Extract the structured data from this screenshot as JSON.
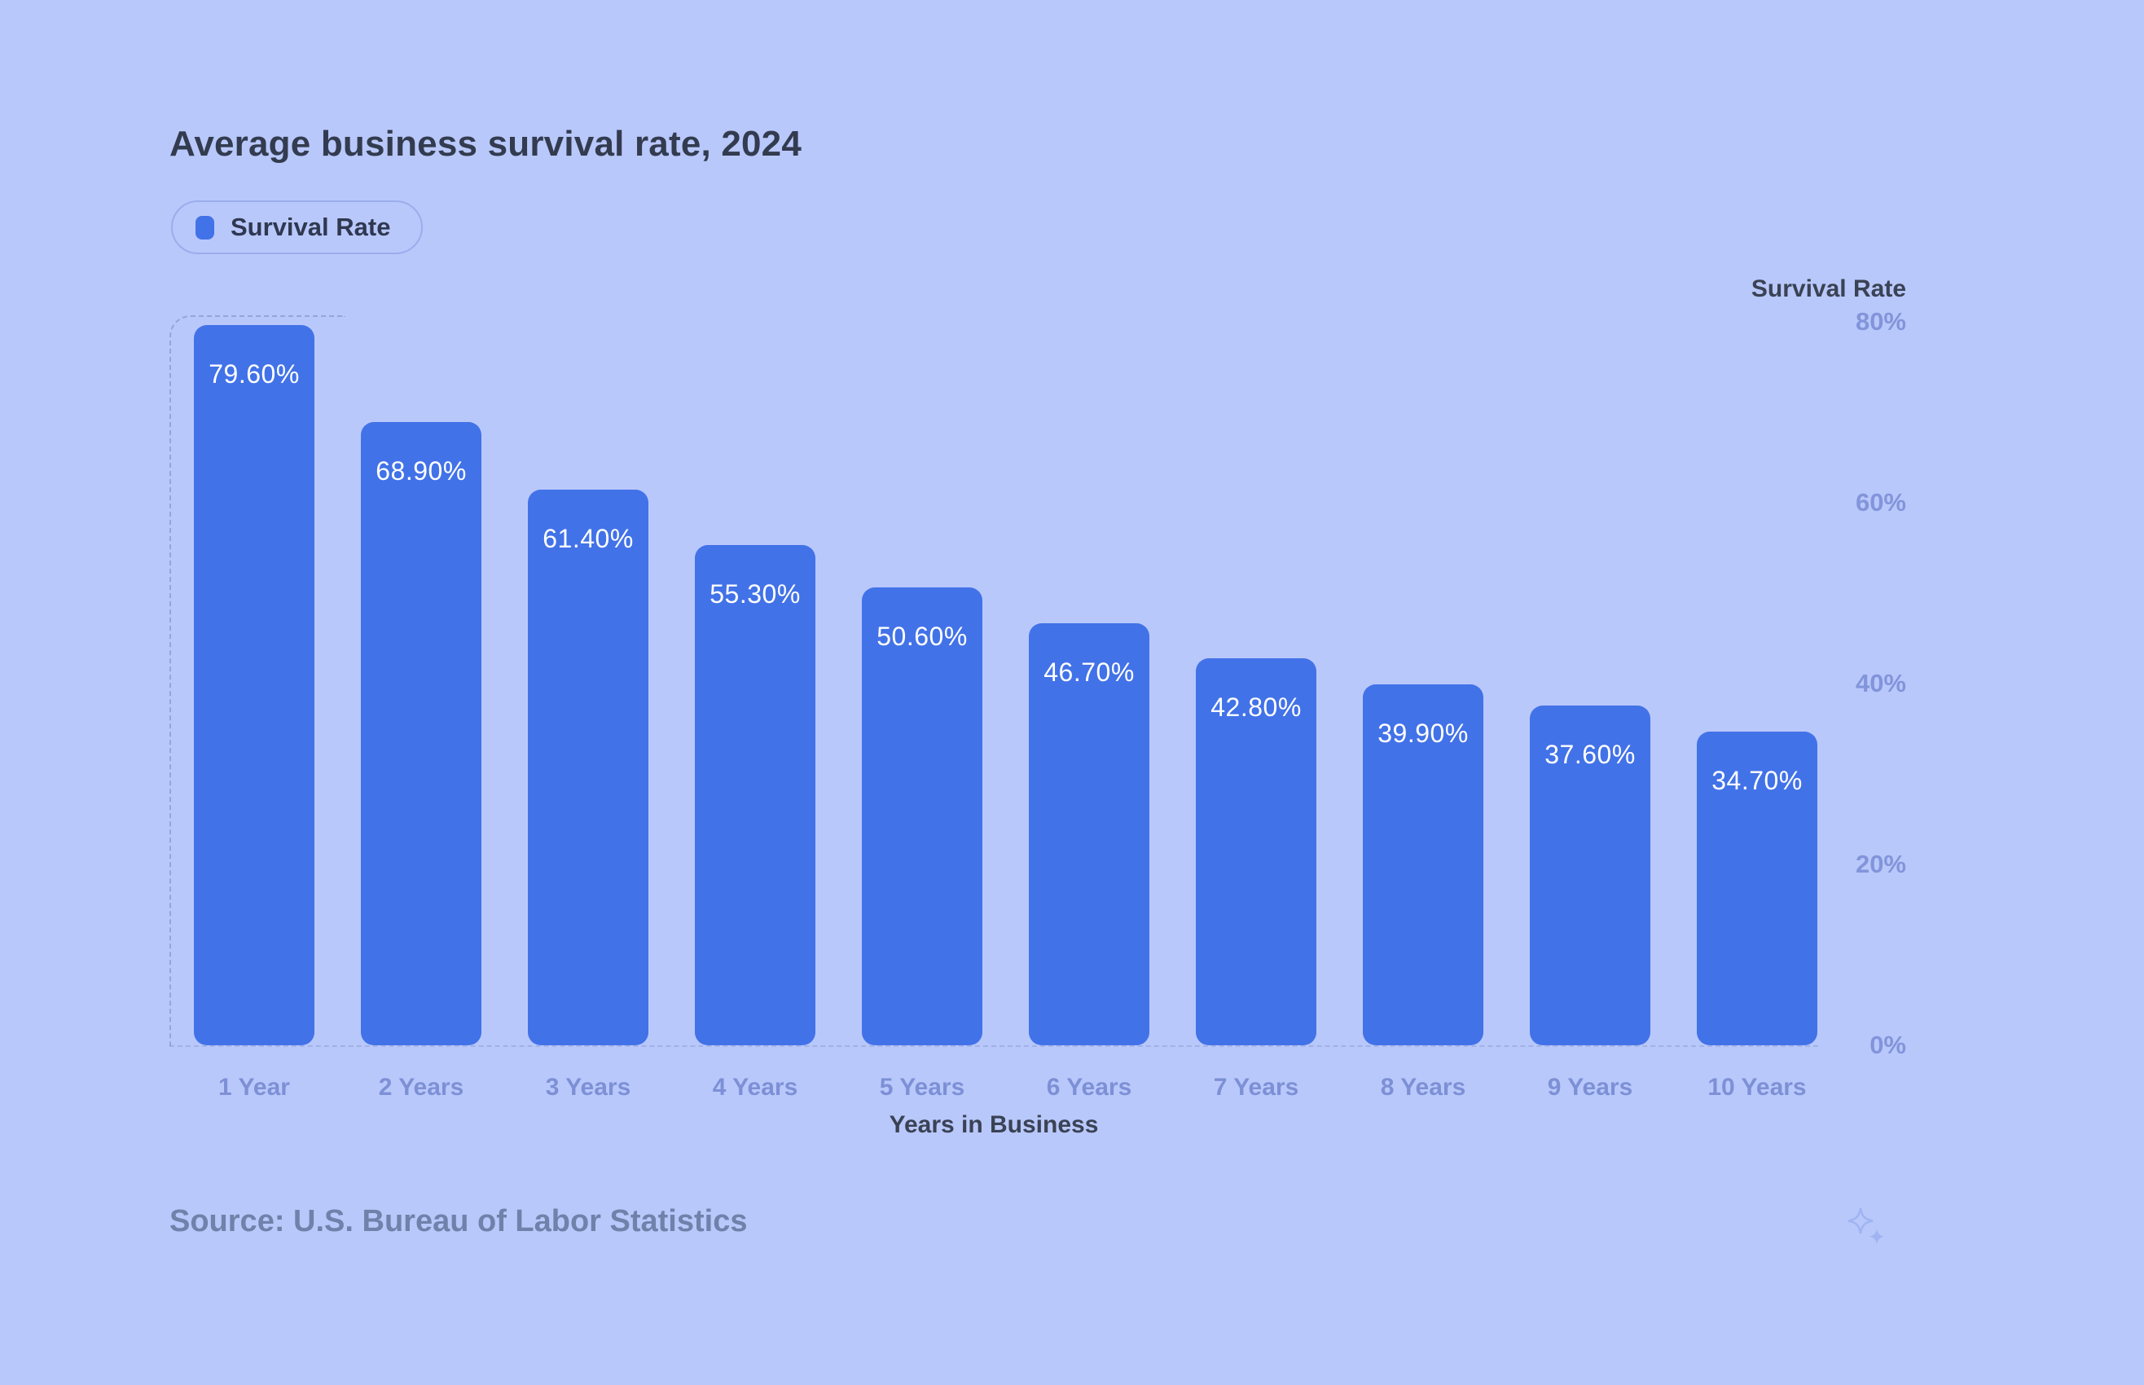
{
  "title": "Average business survival rate, 2024",
  "legend": {
    "label": "Survival Rate"
  },
  "footer": {
    "source_text": "Source: U.S. Bureau of Labor Statistics",
    "sparkle_icon": "two-sparkles"
  },
  "colors": {
    "background": "#b9c8fb",
    "bar": "#4272e8",
    "tick": "#8294da",
    "title_text": "#333b4f",
    "axis_title": "#3a4254",
    "x_tick": "#7d90d6",
    "source_text": "#7081aa",
    "legend_border": "#9cadec",
    "sparkle": "#a0b4f2"
  },
  "chart_data": {
    "type": "bar",
    "categories": [
      "1 Year",
      "2 Years",
      "3 Years",
      "4 Years",
      "5 Years",
      "6 Years",
      "7 Years",
      "8 Years",
      "9 Years",
      "10 Years"
    ],
    "values": [
      79.6,
      68.9,
      61.4,
      55.3,
      50.6,
      46.7,
      42.8,
      39.9,
      37.6,
      34.7
    ],
    "value_labels": [
      "79.60%",
      "68.90%",
      "61.40%",
      "55.30%",
      "50.60%",
      "46.70%",
      "42.80%",
      "39.90%",
      "37.60%",
      "34.70%"
    ],
    "title": "Average business survival rate, 2024",
    "xlabel": "Years in Business",
    "ylabel": "Survival Rate",
    "ylim": [
      0,
      80
    ],
    "yticks": [
      0,
      20,
      40,
      60,
      80
    ],
    "ytick_labels": [
      "0%",
      "20%",
      "40%",
      "60%",
      "80%"
    ],
    "legend_entries": [
      "Survival Rate"
    ],
    "legend_position": "top-left",
    "grid": false,
    "bar_color": "#4272e8",
    "background_color": "#b9c8fb"
  }
}
